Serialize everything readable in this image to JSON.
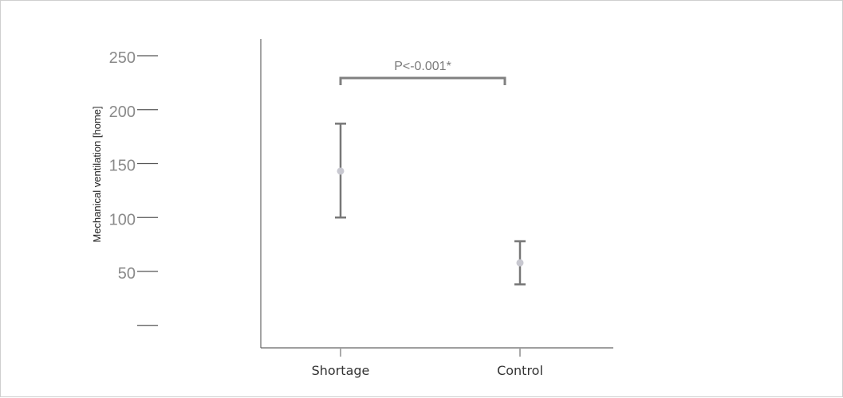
{
  "chart_data": {
    "type": "scatter",
    "title": "",
    "xlabel": "",
    "ylabel": "Mechanical ventilation [home]",
    "categories": [
      "Shortage",
      "Control"
    ],
    "series": [
      {
        "points": [
          {
            "category": "Shortage",
            "mean": 143,
            "lower": 100,
            "upper": 187
          },
          {
            "category": "Control",
            "mean": 58,
            "lower": 38,
            "upper": 78
          }
        ]
      }
    ],
    "yticks": [
      {
        "value": 0,
        "label": ""
      },
      {
        "value": 50,
        "label": "50"
      },
      {
        "value": 100,
        "label": "100"
      },
      {
        "value": 150,
        "label": "150"
      },
      {
        "value": 200,
        "label": "200"
      },
      {
        "value": 250,
        "label": "250"
      }
    ],
    "ylim": [
      -20,
      275
    ],
    "grid": false,
    "annotation": {
      "text": "P<-0.001*",
      "from": "Shortage",
      "to": "Control",
      "y": 230
    },
    "colors": {
      "marker": "#c8c8d0",
      "error_bar": "#777777",
      "axis": "#666666",
      "bracket": "#808080"
    }
  }
}
